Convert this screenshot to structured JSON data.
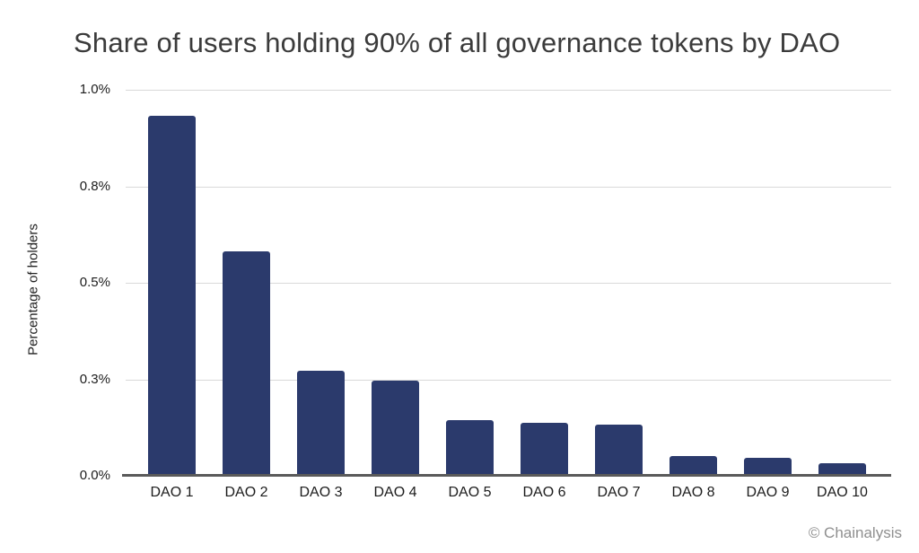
{
  "chart_data": {
    "type": "bar",
    "title": "Share of users holding 90% of all governance tokens by DAO",
    "xlabel": "",
    "ylabel": "Percentage of holders",
    "categories": [
      "DAO 1",
      "DAO 2",
      "DAO 3",
      "DAO 4",
      "DAO 5",
      "DAO 6",
      "DAO 7",
      "DAO 8",
      "DAO 9",
      "DAO 10"
    ],
    "values": [
      0.93,
      0.58,
      0.27,
      0.245,
      0.143,
      0.136,
      0.13,
      0.05,
      0.044,
      0.03
    ],
    "unit": "percent of holders",
    "ylim": [
      0,
      1.0
    ],
    "yticks": [
      {
        "value": 0.0,
        "label": "0.0%"
      },
      {
        "value": 0.25,
        "label": "0.3%"
      },
      {
        "value": 0.5,
        "label": "0.5%"
      },
      {
        "value": 0.75,
        "label": "0.8%"
      },
      {
        "value": 1.0,
        "label": "1.0%"
      }
    ],
    "grid": true,
    "legend": "none",
    "colors": {
      "bar": "#2b3a6c",
      "gridline": "#d9d9d9",
      "axis_line": "#5a5a5a",
      "title_text": "#3b3b3b",
      "tick_text": "#1c1c1c",
      "source_text": "#8f8f8f"
    },
    "source_label": "© Chainalysis"
  }
}
